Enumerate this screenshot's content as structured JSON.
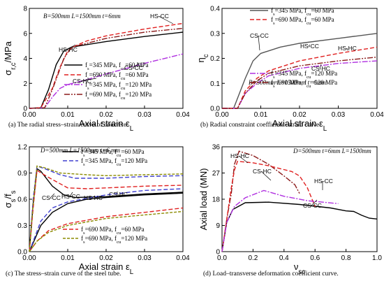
{
  "chart_data": [
    {
      "id": "a",
      "type": "line",
      "caption": "(a) The radial stress–strain curve of concrete.",
      "xlabel": "Axial strain ε_L",
      "ylabel": "σ_r,c/MPa",
      "xlim": [
        0,
        0.04
      ],
      "ylim": [
        0,
        8
      ],
      "xticks": [
        "0.00",
        "0.01",
        "0.02",
        "0.03",
        "0.04"
      ],
      "yticks": [
        "0",
        "2",
        "4",
        "6",
        "8"
      ],
      "params": "B=500mm  L=1500mm  t=6mm",
      "legend": [
        "f_s=345 MPa, f_cu=60 MPa",
        "f_s=690 MPa, f_cu=60 MPa",
        "f_s=345 MPa, f_cu=120 MPa",
        "f_s=690 MPa, f_cu=120 MPa"
      ],
      "annotations": [
        "HS-CC",
        "HS-HC",
        "CS-HC",
        "CS-CC"
      ],
      "series": [
        {
          "color": "#000000",
          "dash": "",
          "points": [
            [
              0,
              0
            ],
            [
              0.003,
              0.05
            ],
            [
              0.005,
              1.5
            ],
            [
              0.007,
              3.5
            ],
            [
              0.009,
              4.6
            ],
            [
              0.011,
              4.9
            ],
            [
              0.015,
              5.1
            ],
            [
              0.02,
              5.35
            ],
            [
              0.03,
              5.75
            ],
            [
              0.04,
              6.1
            ]
          ]
        },
        {
          "color": "#e02020",
          "dash": "6,3",
          "points": [
            [
              0,
              0
            ],
            [
              0.003,
              0.05
            ],
            [
              0.006,
              1.6
            ],
            [
              0.008,
              3.3
            ],
            [
              0.01,
              4.6
            ],
            [
              0.012,
              5.0
            ],
            [
              0.015,
              5.4
            ],
            [
              0.02,
              5.8
            ],
            [
              0.03,
              6.35
            ],
            [
              0.04,
              6.8
            ]
          ]
        },
        {
          "color": "#b030e0",
          "dash": "8,2,2,2",
          "points": [
            [
              0,
              0
            ],
            [
              0.004,
              0.05
            ],
            [
              0.006,
              0.9
            ],
            [
              0.008,
              1.6
            ],
            [
              0.01,
              1.9
            ],
            [
              0.015,
              2.3
            ],
            [
              0.02,
              2.75
            ],
            [
              0.03,
              3.6
            ],
            [
              0.04,
              4.35
            ]
          ]
        },
        {
          "color": "#8b1a1a",
          "dash": "8,2,2,2,2,2",
          "points": [
            [
              0,
              0
            ],
            [
              0.004,
              0.05
            ],
            [
              0.006,
              1.5
            ],
            [
              0.009,
              4.0
            ],
            [
              0.011,
              4.9
            ],
            [
              0.015,
              5.2
            ],
            [
              0.02,
              5.6
            ],
            [
              0.03,
              6.1
            ],
            [
              0.04,
              6.4
            ]
          ]
        }
      ]
    },
    {
      "id": "b",
      "type": "line",
      "caption": "(b) Radial constraint coefficient–strain curve.",
      "xlabel": "Axial strain ε_L",
      "ylabel": "η_c",
      "xlim": [
        0,
        0.04
      ],
      "ylim": [
        0,
        0.4
      ],
      "xticks": [
        "0.00",
        "0.01",
        "0.02",
        "0.03",
        "0.04"
      ],
      "yticks": [
        "0.0",
        "0.1",
        "0.2",
        "0.3",
        "0.4"
      ],
      "params": "B=500mm  L=1500mm  t=6mm",
      "legend": [
        "f_s=345 MPa, f_cu=60 MPa",
        "f_s=690 MPa, f_cu=60 MPa",
        "f_s=345 MPa, f_cu=120 MPa",
        "f_s=690 MPa, f_cu=120 MPa"
      ],
      "annotations": [
        "CS-CC",
        "HS-CC",
        "HS-HC",
        "CS-HC"
      ],
      "series": [
        {
          "color": "#555555",
          "dash": "",
          "points": [
            [
              0,
              0
            ],
            [
              0.003,
              0.0
            ],
            [
              0.006,
              0.12
            ],
            [
              0.008,
              0.19
            ],
            [
              0.01,
              0.22
            ],
            [
              0.015,
              0.245
            ],
            [
              0.02,
              0.26
            ],
            [
              0.03,
              0.28
            ],
            [
              0.04,
              0.3
            ]
          ]
        },
        {
          "color": "#e02020",
          "dash": "6,3",
          "points": [
            [
              0,
              0
            ],
            [
              0.004,
              0.0
            ],
            [
              0.006,
              0.07
            ],
            [
              0.009,
              0.12
            ],
            [
              0.012,
              0.15
            ],
            [
              0.02,
              0.19
            ],
            [
              0.03,
              0.22
            ],
            [
              0.04,
              0.245
            ]
          ]
        },
        {
          "color": "#b030e0",
          "dash": "8,2,2,2",
          "points": [
            [
              0,
              0
            ],
            [
              0.004,
              0.0
            ],
            [
              0.006,
              0.06
            ],
            [
              0.009,
              0.1
            ],
            [
              0.012,
              0.13
            ],
            [
              0.02,
              0.16
            ],
            [
              0.03,
              0.18
            ],
            [
              0.04,
              0.19
            ]
          ]
        },
        {
          "color": "#8b1a1a",
          "dash": "8,2,2,2,2,2",
          "points": [
            [
              0,
              0
            ],
            [
              0.004,
              0.0
            ],
            [
              0.006,
              0.06
            ],
            [
              0.009,
              0.11
            ],
            [
              0.012,
              0.14
            ],
            [
              0.02,
              0.17
            ],
            [
              0.03,
              0.19
            ],
            [
              0.04,
              0.205
            ]
          ]
        }
      ]
    },
    {
      "id": "c",
      "type": "line",
      "caption": "(c) The stress–strain curve of the steel tube.",
      "xlabel": "Axial strain ε_L",
      "ylabel": "σ_s/f_s",
      "xlim": [
        0,
        0.04
      ],
      "ylim": [
        0,
        1.2
      ],
      "xticks": [
        "0.00",
        "0.01",
        "0.02",
        "0.03",
        "0.04"
      ],
      "yticks": [
        "0.0",
        "0.3",
        "0.6",
        "0.9",
        "1.2"
      ],
      "params": "D=500mm  L=1500mm  t=6 mm",
      "legend": [
        "f_s=345 MPa, f_cu=60 MPa",
        "f_s=345 MPa, f_cu=120 MPa",
        "f_s=690 MPa, f_cu=60 MPa",
        "f_s=690 MPa, f_cu=120 MPa"
      ],
      "annotations": [
        "CS-CC",
        "HS-CC",
        "HS-HC",
        "CS-HC"
      ],
      "series": [
        {
          "color": "#000000",
          "dash": "",
          "points": [
            [
              0,
              0
            ],
            [
              0.001,
              0.55
            ],
            [
              0.002,
              0.95
            ],
            [
              0.003,
              0.92
            ],
            [
              0.006,
              0.75
            ],
            [
              0.009,
              0.65
            ],
            [
              0.012,
              0.62
            ],
            [
              0.02,
              0.63
            ],
            [
              0.03,
              0.66
            ],
            [
              0.04,
              0.68
            ]
          ]
        },
        {
          "color": "#000000",
          "dash": "",
          "points": [
            [
              0,
              0
            ],
            [
              0.003,
              0.3
            ],
            [
              0.006,
              0.45
            ],
            [
              0.01,
              0.55
            ],
            [
              0.015,
              0.6
            ],
            [
              0.02,
              0.62
            ],
            [
              0.03,
              0.65
            ],
            [
              0.04,
              0.67
            ]
          ]
        },
        {
          "color": "#4040d0",
          "dash": "6,3",
          "points": [
            [
              0,
              0
            ],
            [
              0.001,
              0.6
            ],
            [
              0.002,
              0.98
            ],
            [
              0.004,
              0.95
            ],
            [
              0.008,
              0.88
            ],
            [
              0.012,
              0.84
            ],
            [
              0.02,
              0.84
            ],
            [
              0.03,
              0.86
            ],
            [
              0.04,
              0.87
            ]
          ]
        },
        {
          "color": "#4040d0",
          "dash": "6,3",
          "points": [
            [
              0,
              0
            ],
            [
              0.003,
              0.35
            ],
            [
              0.006,
              0.5
            ],
            [
              0.01,
              0.57
            ],
            [
              0.02,
              0.65
            ],
            [
              0.03,
              0.7
            ],
            [
              0.04,
              0.72
            ]
          ]
        },
        {
          "color": "#e02020",
          "dash": "6,3",
          "points": [
            [
              0,
              0
            ],
            [
              0.001,
              0.5
            ],
            [
              0.002,
              0.93
            ],
            [
              0.005,
              0.85
            ],
            [
              0.01,
              0.73
            ],
            [
              0.015,
              0.72
            ],
            [
              0.02,
              0.73
            ],
            [
              0.03,
              0.75
            ],
            [
              0.04,
              0.76
            ]
          ]
        },
        {
          "color": "#e02020",
          "dash": "6,3",
          "points": [
            [
              0,
              0
            ],
            [
              0.002,
              0.12
            ],
            [
              0.005,
              0.24
            ],
            [
              0.01,
              0.32
            ],
            [
              0.02,
              0.4
            ],
            [
              0.03,
              0.45
            ],
            [
              0.04,
              0.5
            ]
          ]
        },
        {
          "color": "#8b8b00",
          "dash": "4,2",
          "points": [
            [
              0,
              0
            ],
            [
              0.001,
              0.55
            ],
            [
              0.002,
              0.98
            ],
            [
              0.004,
              0.96
            ],
            [
              0.008,
              0.9
            ],
            [
              0.015,
              0.88
            ],
            [
              0.02,
              0.87
            ],
            [
              0.03,
              0.88
            ],
            [
              0.04,
              0.89
            ]
          ]
        },
        {
          "color": "#8b8b00",
          "dash": "4,2",
          "points": [
            [
              0,
              0
            ],
            [
              0.002,
              0.12
            ],
            [
              0.005,
              0.22
            ],
            [
              0.01,
              0.3
            ],
            [
              0.02,
              0.38
            ],
            [
              0.03,
              0.42
            ],
            [
              0.04,
              0.46
            ]
          ]
        }
      ]
    },
    {
      "id": "d",
      "type": "line",
      "caption": "(d) Load–transverse deformation coefficient curve.",
      "xlabel": "ν_sc",
      "ylabel": "Axial load (MN)",
      "xlim": [
        0,
        1.0
      ],
      "ylim": [
        0,
        36
      ],
      "xticks": [
        "0.0",
        "0.2",
        "0.4",
        "0.6",
        "0.8",
        "1.0"
      ],
      "yticks": [
        "0",
        "9",
        "18",
        "27",
        "36"
      ],
      "params": "D=500mm  t=6mm  L=1500mm",
      "annotations": [
        "HS-HC",
        "CS-HC",
        "HS-CC",
        "CS-CC"
      ],
      "series": [
        {
          "color": "#000000",
          "dash": "",
          "points": [
            [
              0,
              0
            ],
            [
              0.03,
              10
            ],
            [
              0.07,
              14.5
            ],
            [
              0.15,
              16.8
            ],
            [
              0.3,
              17
            ],
            [
              0.5,
              16.2
            ],
            [
              0.7,
              15
            ],
            [
              0.8,
              14
            ],
            [
              0.85,
              13.8
            ],
            [
              0.9,
              12.5
            ],
            [
              0.95,
              11.5
            ],
            [
              1.0,
              11.2
            ]
          ]
        },
        {
          "color": "#8b1a1a",
          "dash": "8,2,2,2",
          "points": [
            [
              0,
              0
            ],
            [
              0.03,
              11
            ],
            [
              0.06,
              20
            ],
            [
              0.08,
              30
            ],
            [
              0.11,
              34.5
            ],
            [
              0.2,
              33
            ],
            [
              0.3,
              30
            ],
            [
              0.4,
              26
            ],
            [
              0.47,
              23
            ],
            [
              0.5,
              20
            ]
          ]
        },
        {
          "color": "#e02020",
          "dash": "6,3",
          "points": [
            [
              0,
              0
            ],
            [
              0.03,
              11
            ],
            [
              0.06,
              22
            ],
            [
              0.08,
              28
            ],
            [
              0.1,
              31
            ],
            [
              0.2,
              30.5
            ],
            [
              0.3,
              29.5
            ],
            [
              0.45,
              27.5
            ],
            [
              0.5,
              26
            ],
            [
              0.55,
              22
            ],
            [
              0.6,
              15.5
            ]
          ]
        },
        {
          "color": "#b030e0",
          "dash": "8,2,2,2",
          "points": [
            [
              0,
              0
            ],
            [
              0.03,
              10
            ],
            [
              0.08,
              15.5
            ],
            [
              0.15,
              18.5
            ],
            [
              0.27,
              21
            ],
            [
              0.4,
              19
            ],
            [
              0.55,
              17.5
            ],
            [
              0.65,
              17
            ],
            [
              0.75,
              16.5
            ]
          ]
        }
      ]
    }
  ]
}
